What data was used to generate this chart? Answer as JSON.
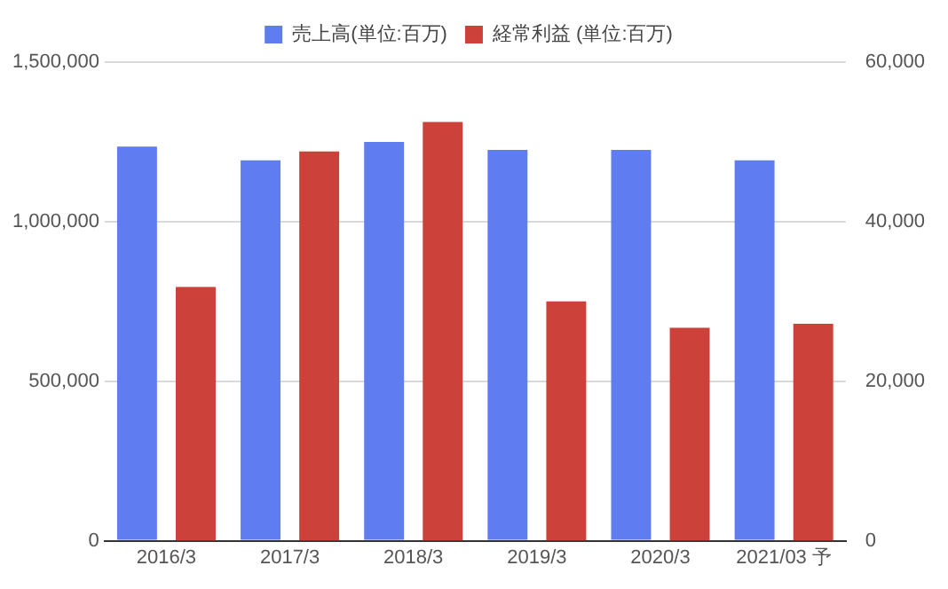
{
  "chart_data": {
    "type": "bar",
    "categories": [
      "2016/3",
      "2017/3",
      "2018/3",
      "2019/3",
      "2020/3",
      "2021/03 予"
    ],
    "series": [
      {
        "name": "売上高(単位:百万)",
        "color": "#5f7cf0",
        "values": [
          1235000,
          1192000,
          1250000,
          1225000,
          1225000,
          1192000
        ]
      },
      {
        "name": "経常利益 (単位:百万)",
        "color": "#cc4139",
        "axis": "y2",
        "values": [
          31800,
          48800,
          52500,
          30000,
          26700,
          27200
        ]
      }
    ],
    "ylim": [
      0,
      1500000
    ],
    "yticks": [
      {
        "value": 0,
        "label": "0"
      },
      {
        "value": 500000,
        "label": "500,000"
      },
      {
        "value": 1000000,
        "label": "1,000,000"
      },
      {
        "value": 1500000,
        "label": "1,500,000"
      }
    ],
    "y2lim": [
      0,
      60000
    ],
    "y2ticks": [
      {
        "value": 0,
        "label": "0"
      },
      {
        "value": 20000,
        "label": "20,000"
      },
      {
        "value": 40000,
        "label": "40,000"
      },
      {
        "value": 60000,
        "label": "60,000"
      }
    ],
    "grid": "y",
    "legend": "top"
  }
}
